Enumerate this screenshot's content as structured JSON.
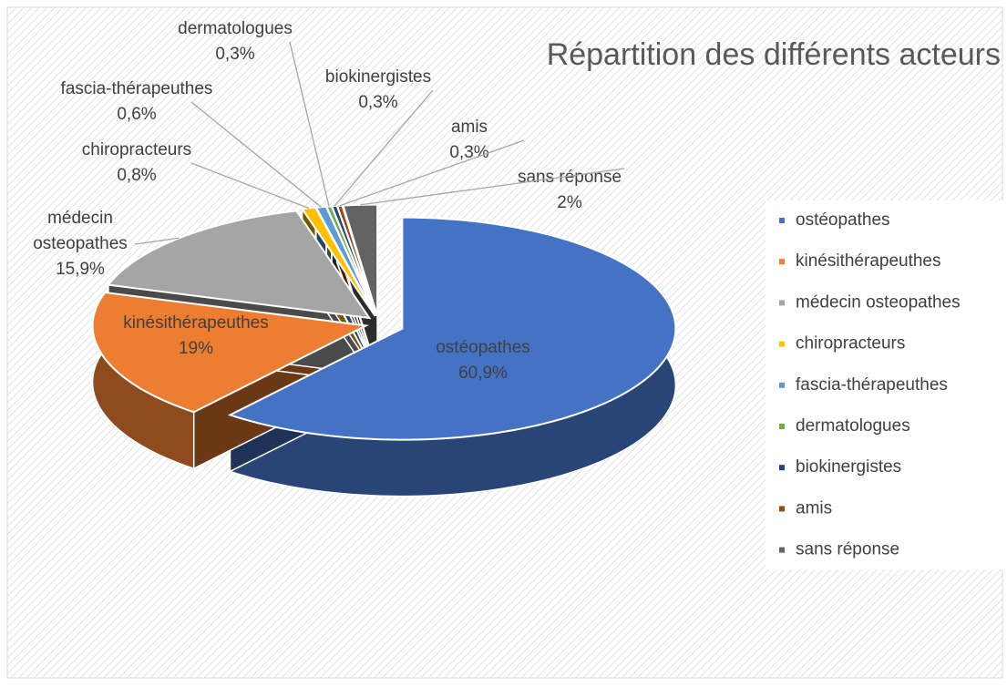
{
  "chart_data": {
    "type": "pie",
    "title": "Répartition des différents acteurs",
    "categories": [
      "ostéopathes",
      "kinésithérapeuthes",
      "médecin osteopathes",
      "chiropracteurs",
      "fascia-thérapeuthes",
      "dermatologues",
      "biokinergistes",
      "amis",
      "sans réponse"
    ],
    "values": [
      60.9,
      19,
      15.9,
      0.8,
      0.6,
      0.3,
      0.3,
      0.3,
      2
    ],
    "value_labels": [
      "60,9%",
      "19%",
      "15,9%",
      "0,8%",
      "0,6%",
      "0,3%",
      "0,3%",
      "0,3%",
      "2%"
    ],
    "colors": [
      "#4472c4",
      "#ed7d31",
      "#a5a5a5",
      "#ffc000",
      "#5b9bd5",
      "#70ad47",
      "#264478",
      "#9e480e",
      "#636363"
    ],
    "legend": "right"
  }
}
